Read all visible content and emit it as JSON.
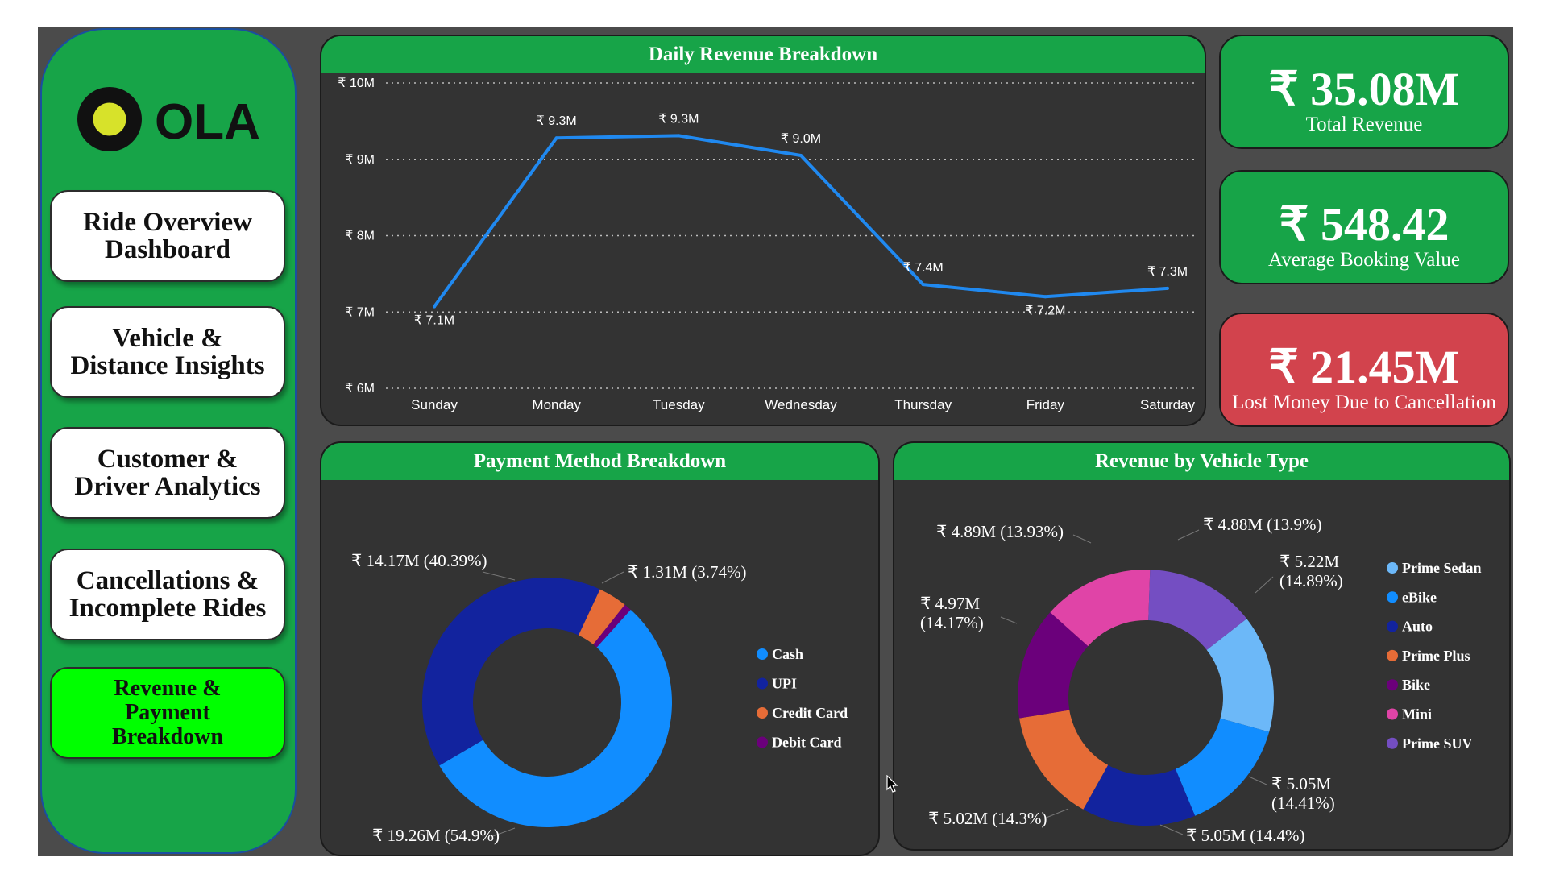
{
  "brand": {
    "name": "OLA"
  },
  "nav": [
    {
      "label": "Ride Overview\nDashboard",
      "active": false
    },
    {
      "label": "Vehicle &\nDistance Insights",
      "active": false
    },
    {
      "label": "Customer &\nDriver Analytics",
      "active": false
    },
    {
      "label": "Cancellations &\nIncomplete Rides",
      "active": false
    },
    {
      "label": "Revenue &\nPayment\nBreakdown",
      "active": true
    }
  ],
  "kpis": [
    {
      "value": "₹ 35.08M",
      "label": "Total Revenue"
    },
    {
      "value": "₹ 548.42",
      "label": "Average Booking Value"
    },
    {
      "value": "₹ 21.45M",
      "label": "Lost Money Due to Cancellation"
    }
  ],
  "colors": {
    "green": "#17a448",
    "panel": "#333333",
    "red": "#d2434d",
    "active_nav": "#00ff00",
    "line": "#2089f0"
  },
  "chart_data": [
    {
      "type": "line",
      "title": "Daily Revenue Breakdown",
      "categories": [
        "Sunday",
        "Monday",
        "Tuesday",
        "Wednesday",
        "Thursday",
        "Friday",
        "Saturday"
      ],
      "values": [
        7.07,
        9.28,
        9.31,
        9.05,
        7.36,
        7.2,
        7.31
      ],
      "data_labels": [
        "₹ 7.1M",
        "₹ 9.3M",
        "₹ 9.3M",
        "₹ 9.0M",
        "₹ 7.4M",
        "₹ 7.2M",
        "₹ 7.3M"
      ],
      "yticks": [
        "₹ 6M",
        "₹ 7M",
        "₹ 8M",
        "₹ 9M",
        "₹ 10M"
      ],
      "ylim": [
        6,
        10
      ],
      "grid": true,
      "color": "#2089f0"
    },
    {
      "type": "pie",
      "title": "Payment Method Breakdown",
      "series": [
        {
          "name": "Cash",
          "value": 19.26,
          "label": "₹ 19.26M (54.9%)",
          "color": "#118dff"
        },
        {
          "name": "UPI",
          "value": 14.17,
          "label": "₹ 14.17M (40.39%)",
          "color": "#12239e"
        },
        {
          "name": "Credit Card",
          "value": 1.31,
          "label": "₹ 1.31M (3.74%)",
          "color": "#e66c37"
        },
        {
          "name": "Debit Card",
          "value": 0.34,
          "label": "",
          "color": "#6b007b"
        }
      ],
      "legend": "right"
    },
    {
      "type": "pie",
      "title": "Revenue by Vehicle Type",
      "series": [
        {
          "name": "Prime Sedan",
          "value": 5.22,
          "label": "₹ 5.22M\n(14.89%)",
          "color": "#6cb8f8"
        },
        {
          "name": "eBike",
          "value": 5.05,
          "label": "₹ 5.05M\n(14.41%)",
          "color": "#118dff"
        },
        {
          "name": "Auto",
          "value": 5.05,
          "label": "₹ 5.05M (14.4%)",
          "color": "#12239e"
        },
        {
          "name": "Prime Plus",
          "value": 5.02,
          "label": "₹ 5.02M (14.3%)",
          "color": "#e66c37"
        },
        {
          "name": "Bike",
          "value": 4.97,
          "label": "₹ 4.97M\n(14.17%)",
          "color": "#6b007b"
        },
        {
          "name": "Mini",
          "value": 4.89,
          "label": "₹ 4.89M (13.93%)",
          "color": "#e044a7"
        },
        {
          "name": "Prime SUV",
          "value": 4.88,
          "label": "₹ 4.88M (13.9%)",
          "color": "#744ec2"
        }
      ],
      "legend": "right"
    }
  ]
}
